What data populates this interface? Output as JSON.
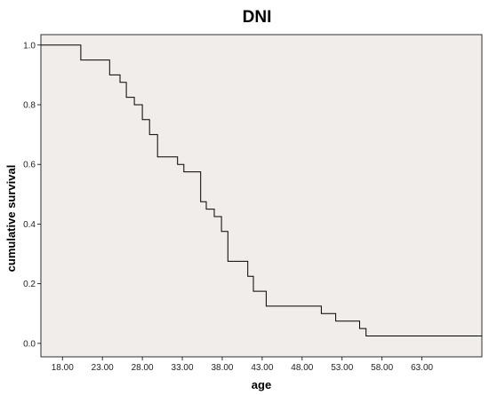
{
  "chart_data": {
    "type": "line",
    "subtype": "step",
    "title": "DNI",
    "xlabel": "age",
    "ylabel": "cumulative survival",
    "xlim": [
      15.3,
      70.5
    ],
    "ylim": [
      -0.045,
      1.035
    ],
    "x_ticks": [
      18,
      23,
      28,
      33,
      38,
      43,
      48,
      53,
      58,
      63
    ],
    "x_tick_labels": [
      "18.00",
      "23.00",
      "28.00",
      "33.00",
      "38.00",
      "43.00",
      "48.00",
      "53.00",
      "58.00",
      "63.00"
    ],
    "y_ticks": [
      0.0,
      0.2,
      0.4,
      0.6,
      0.8,
      1.0
    ],
    "y_tick_labels": [
      "0.0",
      "0.2",
      "0.4",
      "0.6",
      "0.8",
      "1.0"
    ],
    "grid": false,
    "colors": {
      "plot_background": "#f1edeb",
      "line": "#000000"
    },
    "series": [
      {
        "x": [
          15.3,
          20.3,
          23.9,
          25.2,
          26.0,
          27.0,
          28.0,
          28.9,
          29.9,
          30.8,
          32.4,
          33.2,
          35.3,
          36.0,
          37.0,
          37.9,
          38.7,
          41.2,
          41.9,
          43.5,
          50.4,
          52.2,
          55.2,
          56.0,
          70.5
        ],
        "y": [
          1.0,
          0.95,
          0.9,
          0.875,
          0.825,
          0.8,
          0.75,
          0.7,
          0.625,
          0.625,
          0.6,
          0.575,
          0.475,
          0.45,
          0.425,
          0.375,
          0.275,
          0.225,
          0.175,
          0.125,
          0.1,
          0.075,
          0.05,
          0.025,
          0.025
        ]
      }
    ]
  }
}
